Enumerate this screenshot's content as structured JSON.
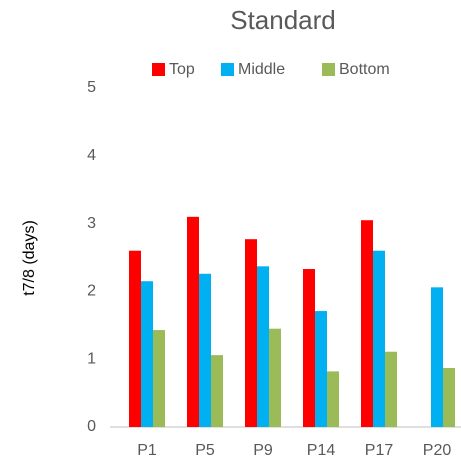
{
  "chart_data": {
    "type": "bar",
    "title": "Standard",
    "y_label": "t7/8 (days)",
    "categories": [
      "P1",
      "P5",
      "P9",
      "P14",
      "P17",
      "P20"
    ],
    "series": [
      {
        "name": "Top",
        "color": "#ff0000",
        "values": [
          2.6,
          3.1,
          2.77,
          2.33,
          3.05,
          null
        ]
      },
      {
        "name": "Middle",
        "color": "#00b0f0",
        "values": [
          2.15,
          2.26,
          2.37,
          1.71,
          2.6,
          2.06
        ]
      },
      {
        "name": "Bottom",
        "color": "#9bbb59",
        "values": [
          1.43,
          1.06,
          1.45,
          0.82,
          1.11,
          0.87
        ]
      }
    ],
    "ylim": [
      0,
      5
    ],
    "yticks": [
      0,
      1,
      2,
      3,
      4,
      5
    ],
    "grid": false,
    "legend": "top"
  }
}
